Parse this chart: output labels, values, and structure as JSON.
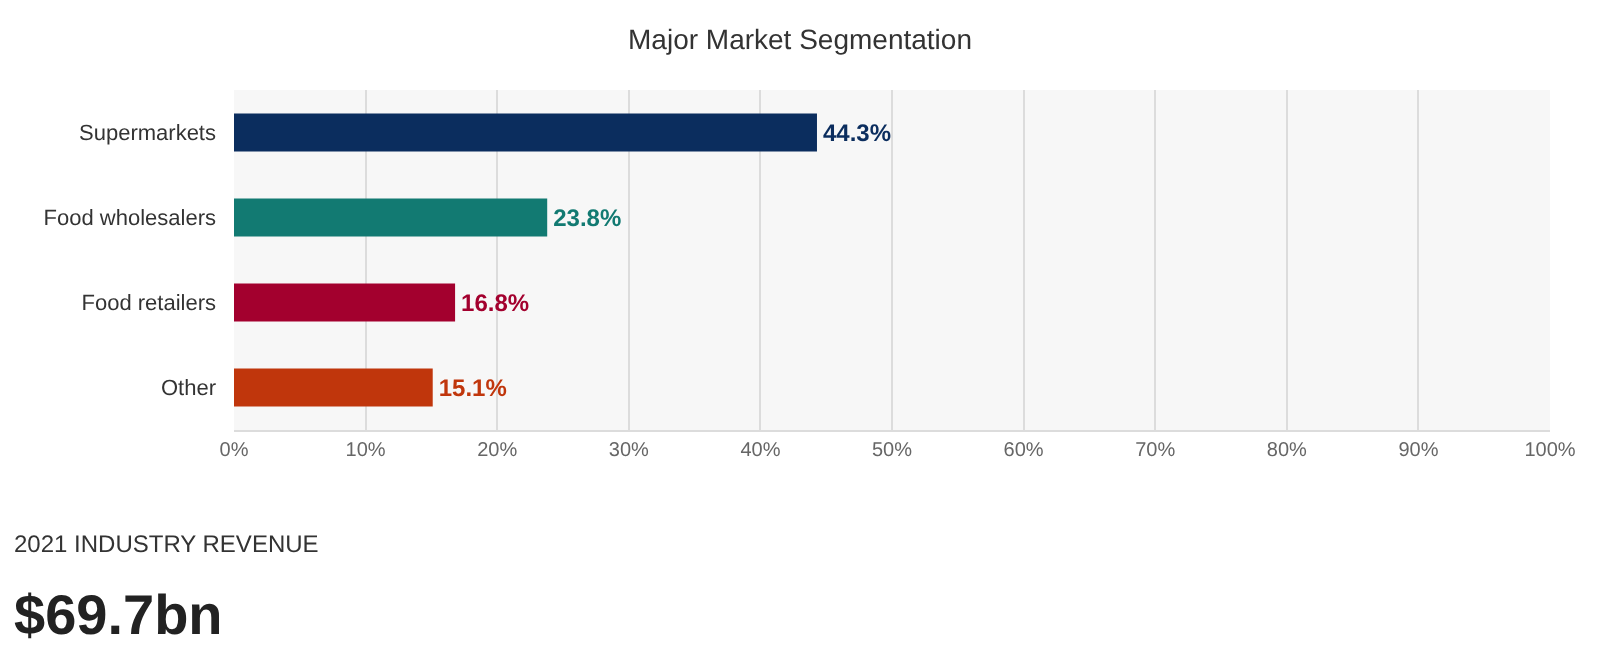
{
  "chart_data": {
    "type": "bar",
    "orientation": "horizontal",
    "title": "Major Market Segmentation",
    "categories": [
      "Supermarkets",
      "Food wholesalers",
      "Food retailers",
      "Other"
    ],
    "values": [
      44.3,
      23.8,
      16.8,
      15.1
    ],
    "colors": [
      "#0b2d5e",
      "#127a72",
      "#a3002e",
      "#c0360c"
    ],
    "value_labels": [
      "44.3%",
      "23.8%",
      "16.8%",
      "15.1%"
    ],
    "xlim": [
      0,
      100
    ],
    "xticks": [
      {
        "value": 0,
        "label": "0%"
      },
      {
        "value": 10,
        "label": "10%"
      },
      {
        "value": 20,
        "label": "20%"
      },
      {
        "value": 30,
        "label": "30%"
      },
      {
        "value": 40,
        "label": "40%"
      },
      {
        "value": 50,
        "label": "50%"
      },
      {
        "value": 60,
        "label": "60%"
      },
      {
        "value": 70,
        "label": "70%"
      },
      {
        "value": 80,
        "label": "80%"
      },
      {
        "value": 90,
        "label": "90%"
      },
      {
        "value": 100,
        "label": "100%"
      }
    ],
    "grid": "x",
    "annotations": [
      "2021 INDUSTRY REVENUE",
      "$69.7bn"
    ]
  }
}
